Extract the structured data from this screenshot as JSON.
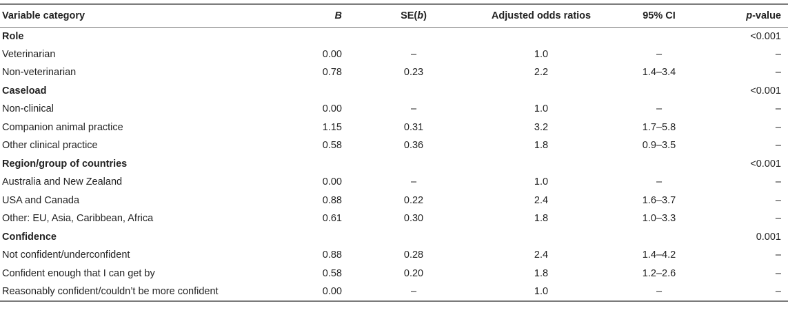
{
  "table": {
    "headers": [
      {
        "text": "Variable category",
        "style": "plain"
      },
      {
        "text": "B",
        "style": "italic"
      },
      {
        "text": "SE(",
        "italic_part": "b",
        "suffix": ")",
        "style": "mixed"
      },
      {
        "text": "Adjusted odds ratios",
        "style": "plain"
      },
      {
        "text": "95% CI",
        "style": "plain"
      },
      {
        "text": "p",
        "suffix": "-value",
        "style": "italic-prefix"
      }
    ],
    "rows": [
      {
        "type": "group",
        "cells": [
          "Role",
          "",
          "",
          "",
          "",
          "<0.001"
        ]
      },
      {
        "type": "item",
        "cells": [
          "Veterinarian",
          "0.00",
          "–",
          "1.0",
          "–",
          "–"
        ]
      },
      {
        "type": "item",
        "cells": [
          "Non-veterinarian",
          "0.78",
          "0.23",
          "2.2",
          "1.4–3.4",
          "–"
        ]
      },
      {
        "type": "group",
        "cells": [
          "Caseload",
          "",
          "",
          "",
          "",
          "<0.001"
        ]
      },
      {
        "type": "item",
        "cells": [
          "Non-clinical",
          "0.00",
          "–",
          "1.0",
          "–",
          "–"
        ]
      },
      {
        "type": "item",
        "cells": [
          "Companion animal practice",
          "1.15",
          "0.31",
          "3.2",
          "1.7–5.8",
          "–"
        ]
      },
      {
        "type": "item",
        "cells": [
          "Other clinical practice",
          "0.58",
          "0.36",
          "1.8",
          "0.9–3.5",
          "–"
        ]
      },
      {
        "type": "group",
        "cells": [
          "Region/group of countries",
          "",
          "",
          "",
          "",
          "<0.001"
        ]
      },
      {
        "type": "item",
        "cells": [
          "Australia and New Zealand",
          "0.00",
          "–",
          "1.0",
          "–",
          "–"
        ]
      },
      {
        "type": "item",
        "cells": [
          "USA and Canada",
          "0.88",
          "0.22",
          "2.4",
          "1.6–3.7",
          "–"
        ]
      },
      {
        "type": "item",
        "cells": [
          "Other: EU, Asia, Caribbean, Africa",
          "0.61",
          "0.30",
          "1.8",
          "1.0–3.3",
          "–"
        ]
      },
      {
        "type": "group",
        "cells": [
          "Confidence",
          "",
          "",
          "",
          "",
          "0.001"
        ]
      },
      {
        "type": "item",
        "cells": [
          "Not confident/underconfident",
          "0.88",
          "0.28",
          "2.4",
          "1.4–4.2",
          "–"
        ]
      },
      {
        "type": "item",
        "cells": [
          "Confident enough that I can get by",
          "0.58",
          "0.20",
          "1.8",
          "1.2–2.6",
          "–"
        ]
      },
      {
        "type": "item",
        "cells": [
          "Reasonably confident/couldn’t be more confident",
          "0.00",
          "–",
          "1.0",
          "–",
          "–"
        ]
      }
    ]
  },
  "colors": {
    "text": "#222222",
    "rule": "#7a7a7a"
  }
}
